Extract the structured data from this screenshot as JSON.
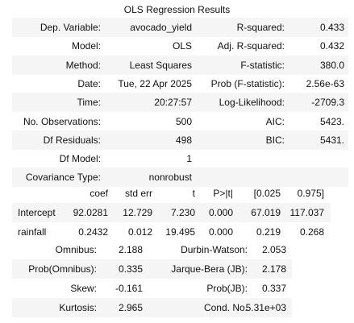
{
  "title": "OLS Regression Results",
  "summary": {
    "rows": [
      [
        "Dep. Variable:",
        "avocado_yield",
        "R-squared:",
        "0.433"
      ],
      [
        "Model:",
        "OLS",
        "Adj. R-squared:",
        "0.432"
      ],
      [
        "Method:",
        "Least Squares",
        "F-statistic:",
        "380.0"
      ],
      [
        "Date:",
        "Tue, 22 Apr 2025",
        "Prob (F-statistic):",
        "2.56e-63"
      ],
      [
        "Time:",
        "20:27:57",
        "Log-Likelihood:",
        "-2709.3"
      ],
      [
        "No. Observations:",
        "500",
        "AIC:",
        "5423."
      ],
      [
        "Df Residuals:",
        "498",
        "BIC:",
        "5431."
      ],
      [
        "Df Model:",
        "1"
      ],
      [
        "Covariance Type:",
        "nonrobust"
      ]
    ]
  },
  "coefficients": {
    "header": [
      "coef",
      "std err",
      "t",
      "P>|t|",
      "[0.025",
      "0.975]"
    ],
    "rows": [
      [
        "Intercept",
        "92.0281",
        "12.729",
        "7.230",
        "0.000",
        "67.019",
        "117.037"
      ],
      [
        "rainfall",
        "0.2432",
        "0.012",
        "19.495",
        "0.000",
        "0.219",
        "0.268"
      ]
    ]
  },
  "diagnostics": {
    "rows": [
      [
        "Omnibus:",
        "2.188",
        "Durbin-Watson:",
        "2.053"
      ],
      [
        "Prob(Omnibus):",
        "0.335",
        "Jarque-Bera (JB):",
        "2.178"
      ],
      [
        "Skew:",
        "-0.161",
        "Prob(JB):",
        "0.337"
      ],
      [
        "Kurtosis:",
        "2.965",
        "Cond. No.",
        "5.31e+03"
      ]
    ]
  }
}
